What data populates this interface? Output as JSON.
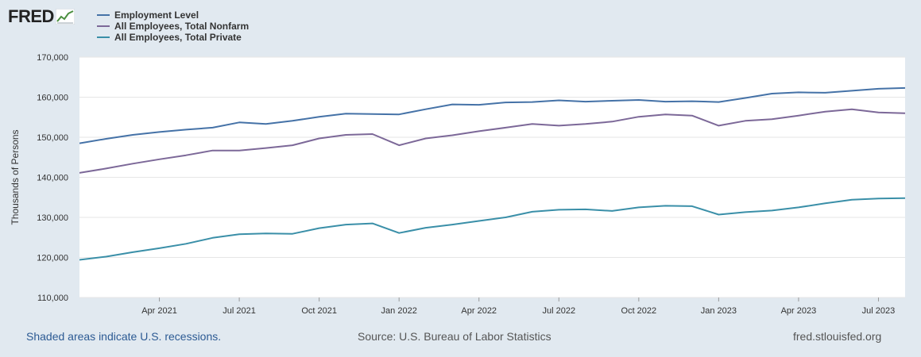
{
  "logo": {
    "text": "FRED",
    "icon": "line-chart-icon"
  },
  "chart_data": {
    "type": "line",
    "title": "",
    "xlabel": "",
    "ylabel": "Thousands of Persons",
    "ylim": [
      110000,
      170000
    ],
    "yticks": [
      110000,
      120000,
      130000,
      140000,
      150000,
      160000,
      170000
    ],
    "ytick_labels": [
      "110,000",
      "120,000",
      "130,000",
      "140,000",
      "150,000",
      "160,000",
      "170,000"
    ],
    "x": [
      "2021-01",
      "2021-02",
      "2021-03",
      "2021-04",
      "2021-05",
      "2021-06",
      "2021-07",
      "2021-08",
      "2021-09",
      "2021-10",
      "2021-11",
      "2021-12",
      "2022-01",
      "2022-02",
      "2022-03",
      "2022-04",
      "2022-05",
      "2022-06",
      "2022-07",
      "2022-08",
      "2022-09",
      "2022-10",
      "2022-11",
      "2022-12",
      "2023-01",
      "2023-02",
      "2023-03",
      "2023-04",
      "2023-05",
      "2023-06",
      "2023-07",
      "2023-08"
    ],
    "xticks": [
      {
        "index": 3,
        "label": "Apr 2021"
      },
      {
        "index": 6,
        "label": "Jul 2021"
      },
      {
        "index": 9,
        "label": "Oct 2021"
      },
      {
        "index": 12,
        "label": "Jan 2022"
      },
      {
        "index": 15,
        "label": "Apr 2022"
      },
      {
        "index": 18,
        "label": "Jul 2022"
      },
      {
        "index": 21,
        "label": "Oct 2022"
      },
      {
        "index": 24,
        "label": "Jan 2023"
      },
      {
        "index": 27,
        "label": "Apr 2023"
      },
      {
        "index": 30,
        "label": "Jul 2023"
      }
    ],
    "grid": true,
    "series": [
      {
        "name": "Employment Level",
        "color": "#4572a7",
        "values": [
          148500,
          149600,
          150600,
          151300,
          151900,
          152400,
          153700,
          153300,
          154100,
          155100,
          155900,
          155800,
          155700,
          157000,
          158200,
          158100,
          158700,
          158800,
          159200,
          158900,
          159100,
          159300,
          158900,
          159000,
          158800,
          159800,
          160900,
          161200,
          161100,
          161600,
          162100,
          162300
        ]
      },
      {
        "name": "All Employees, Total Nonfarm",
        "color": "#7c6898",
        "values": [
          141100,
          142200,
          143400,
          144500,
          145500,
          146700,
          146700,
          147300,
          148000,
          149700,
          150600,
          150800,
          148000,
          149700,
          150500,
          151500,
          152400,
          153300,
          152900,
          153300,
          153900,
          155100,
          155700,
          155400,
          152900,
          154100,
          154500,
          155400,
          156400,
          157000,
          156200,
          156000
        ]
      },
      {
        "name": "All Employees, Total Private",
        "color": "#3a8fa8",
        "values": [
          119400,
          120200,
          121300,
          122300,
          123400,
          124900,
          125800,
          126000,
          125900,
          127300,
          128200,
          128500,
          126100,
          127400,
          128200,
          129100,
          130000,
          131400,
          131900,
          132000,
          131600,
          132500,
          132900,
          132800,
          130700,
          131300,
          131700,
          132500,
          133500,
          134400,
          134700,
          134800
        ]
      }
    ]
  },
  "footer": {
    "recession_note": "Shaded areas indicate U.S. recessions.",
    "source": "Source: U.S. Bureau of Labor Statistics",
    "site": "fred.stlouisfed.org"
  }
}
